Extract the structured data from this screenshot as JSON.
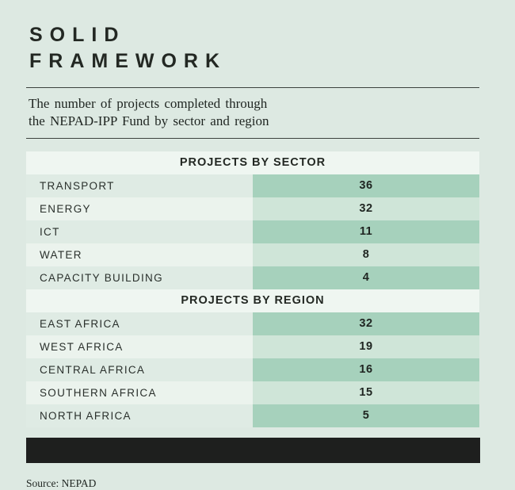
{
  "title": {
    "line1": "SOLID",
    "line2": "FRAMEWORK"
  },
  "subtitle": {
    "line1": "The number of projects completed through",
    "line2": "the NEPAD-IPP Fund by sector and region"
  },
  "tables": [
    {
      "header": "PROJECTS BY SECTOR",
      "rows": [
        {
          "label": "TRANSPORT",
          "value": "36"
        },
        {
          "label": "ENERGY",
          "value": "32"
        },
        {
          "label": "ICT",
          "value": "11"
        },
        {
          "label": "WATER",
          "value": "8"
        },
        {
          "label": "CAPACITY BUILDING",
          "value": "4"
        }
      ]
    },
    {
      "header": "PROJECTS BY REGION",
      "rows": [
        {
          "label": "EAST AFRICA",
          "value": "32"
        },
        {
          "label": "WEST AFRICA",
          "value": "19"
        },
        {
          "label": "CENTRAL AFRICA",
          "value": "16"
        },
        {
          "label": "SOUTHERN AFRICA",
          "value": "15"
        },
        {
          "label": "NORTH AFRICA",
          "value": "5"
        }
      ]
    }
  ],
  "source": "Source: NEPAD",
  "colors": {
    "page_background": "#dde9e2",
    "header_band": "#eff6f1",
    "row_label_odd": "#dfebe4",
    "row_label_even": "#ebf3ed",
    "row_value_odd": "#a6d1bc",
    "row_value_even": "#cfe5d8",
    "black_bar": "#1e1f1e",
    "text": "#232823"
  },
  "chart_data": [
    {
      "type": "table",
      "title": "PROJECTS BY SECTOR",
      "categories": [
        "TRANSPORT",
        "ENERGY",
        "ICT",
        "WATER",
        "CAPACITY BUILDING"
      ],
      "values": [
        36,
        32,
        11,
        8,
        4
      ]
    },
    {
      "type": "table",
      "title": "PROJECTS BY REGION",
      "categories": [
        "EAST AFRICA",
        "WEST AFRICA",
        "CENTRAL AFRICA",
        "SOUTHERN AFRICA",
        "NORTH AFRICA"
      ],
      "values": [
        32,
        19,
        16,
        15,
        5
      ]
    }
  ]
}
